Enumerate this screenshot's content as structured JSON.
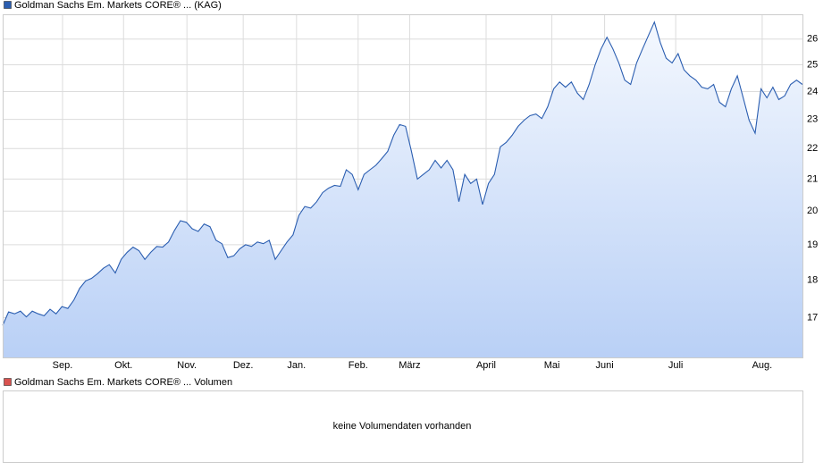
{
  "chart_data": [
    {
      "type": "line",
      "yscale": "log",
      "grid": true,
      "series": [
        {
          "name": "Goldman Sachs Em. Markets CORE® ... (KAG)",
          "color": "#2a5db0",
          "values": [
            16.8,
            17.15,
            17.1,
            17.17,
            17.02,
            17.17,
            17.1,
            17.05,
            17.22,
            17.1,
            17.29,
            17.24,
            17.46,
            17.78,
            17.98,
            18.05,
            18.18,
            18.33,
            18.43,
            18.2,
            18.58,
            18.78,
            18.93,
            18.83,
            18.58,
            18.78,
            18.95,
            18.93,
            19.08,
            19.42,
            19.71,
            19.66,
            19.47,
            19.39,
            19.61,
            19.53,
            19.13,
            19.03,
            18.63,
            18.68,
            18.88,
            19.0,
            18.95,
            19.08,
            19.03,
            19.13,
            18.58,
            18.83,
            19.08,
            19.29,
            19.87,
            20.14,
            20.09,
            20.29,
            20.57,
            20.71,
            20.8,
            20.77,
            21.3,
            21.15,
            20.66,
            21.15,
            21.3,
            21.45,
            21.67,
            21.91,
            22.45,
            22.82,
            22.76,
            21.91,
            21.0,
            21.15,
            21.3,
            21.61,
            21.36,
            21.61,
            21.3,
            20.29,
            21.15,
            20.86,
            21.0,
            20.2,
            20.86,
            21.15,
            22.06,
            22.21,
            22.45,
            22.76,
            22.97,
            23.13,
            23.19,
            23.03,
            23.45,
            24.1,
            24.35,
            24.16,
            24.35,
            23.94,
            23.71,
            24.26,
            25.0,
            25.61,
            26.07,
            25.61,
            25.07,
            24.42,
            24.26,
            25.07,
            25.61,
            26.14,
            26.68,
            25.86,
            25.25,
            25.07,
            25.43,
            24.81,
            24.58,
            24.42,
            24.16,
            24.1,
            24.26,
            23.61,
            23.45,
            24.1,
            24.58,
            23.77,
            22.97,
            22.52,
            24.1,
            23.77,
            24.16,
            23.71,
            23.84,
            24.26,
            24.42,
            24.26
          ]
        }
      ],
      "xlim": [
        0,
        135
      ],
      "xticks": [
        {
          "value": 10.1,
          "label": "Sep."
        },
        {
          "value": 20.4,
          "label": "Okt."
        },
        {
          "value": 31.1,
          "label": "Nov."
        },
        {
          "value": 40.6,
          "label": "Dez."
        },
        {
          "value": 49.6,
          "label": "Jan."
        },
        {
          "value": 60,
          "label": "Feb."
        },
        {
          "value": 68.7,
          "label": "März"
        },
        {
          "value": 81.6,
          "label": "April"
        },
        {
          "value": 92.7,
          "label": "Mai"
        },
        {
          "value": 101.6,
          "label": "Juni"
        },
        {
          "value": 113.6,
          "label": "Juli"
        },
        {
          "value": 128.2,
          "label": "Aug."
        }
      ],
      "ylim": [
        16,
        27
      ],
      "yticks": [
        17,
        18,
        19,
        20,
        21,
        22,
        23,
        24,
        25,
        26
      ]
    },
    {
      "type": "empty",
      "series": [
        {
          "name": "Goldman Sachs Em. Markets CORE® ... Volumen",
          "color": "#d9534f"
        }
      ],
      "message": "keine Volumendaten vorhanden"
    }
  ]
}
